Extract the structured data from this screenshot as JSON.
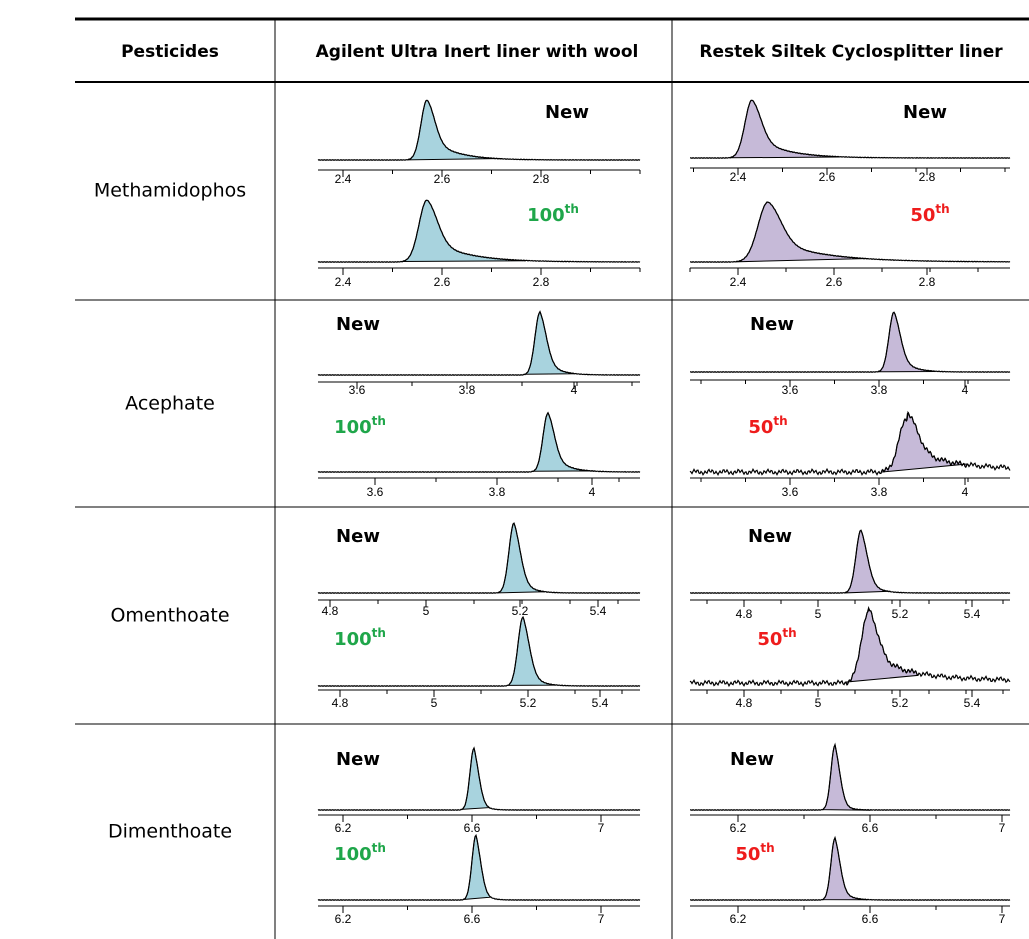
{
  "table": {
    "headers": [
      "Pesticides",
      "Agilent Ultra Inert liner with wool",
      "Restek Siltek Cyclosplitter liner"
    ],
    "rows": [
      {
        "pesticide": "Methamidophos",
        "cells": [
          {
            "panels": [
              {
                "label": "New",
                "color": "#000000",
                "ticks": [
                  2.4,
                  2.6,
                  2.8
                ]
              },
              {
                "label": "100",
                "suffix": "th",
                "color": "#1fa64a",
                "ticks": [
                  2.4,
                  2.6,
                  2.8
                ]
              }
            ]
          },
          {
            "panels": [
              {
                "label": "New",
                "color": "#000000",
                "ticks": [
                  2.4,
                  2.6,
                  2.8
                ]
              },
              {
                "label": "50",
                "suffix": "th",
                "color": "#ee1c1c",
                "ticks": [
                  2.4,
                  2.6,
                  2.8
                ]
              }
            ]
          }
        ]
      },
      {
        "pesticide": "Acephate",
        "cells": [
          {
            "panels": [
              {
                "label": "New",
                "color": "#000000",
                "ticks": [
                  3.6,
                  3.8,
                  4
                ]
              },
              {
                "label": "100",
                "suffix": "th",
                "color": "#1fa64a",
                "ticks": [
                  3.6,
                  3.8,
                  4
                ]
              }
            ]
          },
          {
            "panels": [
              {
                "label": "New",
                "color": "#000000",
                "ticks": [
                  3.6,
                  3.8,
                  4
                ]
              },
              {
                "label": "50",
                "suffix": "th",
                "color": "#ee1c1c",
                "ticks": [
                  3.6,
                  3.8,
                  4
                ]
              }
            ]
          }
        ]
      },
      {
        "pesticide": "Omenthoate",
        "cells": [
          {
            "panels": [
              {
                "label": "New",
                "color": "#000000",
                "ticks": [
                  4.8,
                  5,
                  5.2,
                  5.4
                ]
              },
              {
                "label": "100",
                "suffix": "th",
                "color": "#1fa64a",
                "ticks": [
                  4.8,
                  5,
                  5.2,
                  5.4
                ]
              }
            ]
          },
          {
            "panels": [
              {
                "label": "New",
                "color": "#000000",
                "ticks": [
                  4.8,
                  5,
                  5.2,
                  5.4
                ]
              },
              {
                "label": "50",
                "suffix": "th",
                "color": "#ee1c1c",
                "ticks": [
                  4.8,
                  5,
                  5.2,
                  5.4
                ]
              }
            ]
          }
        ]
      },
      {
        "pesticide": "Dimenthoate",
        "cells": [
          {
            "panels": [
              {
                "label": "New",
                "color": "#000000",
                "ticks": [
                  6.2,
                  6.6,
                  7
                ]
              },
              {
                "label": "100",
                "suffix": "th",
                "color": "#1fa64a",
                "ticks": [
                  6.2,
                  6.6,
                  7
                ]
              }
            ]
          },
          {
            "panels": [
              {
                "label": "New",
                "color": "#000000",
                "ticks": [
                  6.2,
                  6.6,
                  7
                ]
              },
              {
                "label": "50",
                "suffix": "th",
                "color": "#ee1c1c",
                "ticks": [
                  6.2,
                  6.6,
                  7
                ]
              }
            ]
          }
        ]
      }
    ]
  }
}
